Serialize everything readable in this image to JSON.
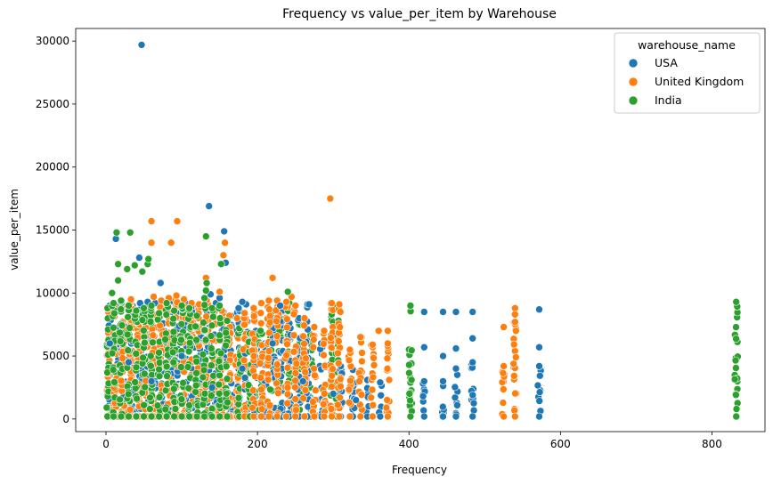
{
  "chart_data": {
    "type": "scatter",
    "title": "Frequency vs value_per_item by Warehouse",
    "xlabel": "Frequency",
    "ylabel": "value_per_item",
    "xlim": [
      -40,
      870
    ],
    "ylim": [
      -1000,
      31000
    ],
    "x_ticks": [
      0,
      200,
      400,
      600,
      800
    ],
    "y_ticks": [
      0,
      5000,
      10000,
      15000,
      20000,
      25000,
      30000
    ],
    "grid": false,
    "legend": {
      "title": "warehouse_name",
      "placement": "top-right",
      "entries": [
        "USA",
        "United Kingdom",
        "India"
      ]
    },
    "series": [
      {
        "name": "USA",
        "color": "#1f77b4",
        "points": [
          [
            47,
            29700
          ],
          [
            136,
            16900
          ],
          [
            156,
            14900
          ],
          [
            158,
            12400
          ],
          [
            13,
            14300
          ],
          [
            44,
            12800
          ],
          [
            72,
            10800
          ],
          [
            138,
            9900
          ],
          [
            150,
            9600
          ],
          [
            180,
            9300
          ],
          [
            230,
            9000
          ],
          [
            268,
            9100
          ],
          [
            420,
            8500
          ],
          [
            445,
            8500
          ],
          [
            462,
            8500
          ],
          [
            484,
            8500
          ],
          [
            572,
            8700
          ],
          [
            420,
            5700
          ],
          [
            462,
            5600
          ],
          [
            484,
            6400
          ],
          [
            572,
            5700
          ],
          [
            445,
            5000
          ],
          [
            5,
            6000
          ],
          [
            30,
            4500
          ],
          [
            60,
            3000
          ],
          [
            100,
            5000
          ],
          [
            140,
            2500
          ],
          [
            180,
            4000
          ],
          [
            220,
            6000
          ],
          [
            260,
            3000
          ],
          [
            300,
            2000
          ],
          [
            330,
            1500
          ]
        ],
        "columns": [
          [
            5,
            9000
          ],
          [
            15,
            9000
          ],
          [
            25,
            8800
          ],
          [
            35,
            9000
          ],
          [
            45,
            9200
          ],
          [
            55,
            9300
          ],
          [
            65,
            9200
          ],
          [
            75,
            9000
          ],
          [
            85,
            9300
          ],
          [
            95,
            9100
          ],
          [
            105,
            9200
          ],
          [
            115,
            9000
          ],
          [
            125,
            8800
          ],
          [
            135,
            9000
          ],
          [
            145,
            9200
          ],
          [
            155,
            8500
          ],
          [
            165,
            8200
          ],
          [
            175,
            8800
          ],
          [
            185,
            9100
          ],
          [
            198,
            7000
          ],
          [
            210,
            6000
          ],
          [
            222,
            8000
          ],
          [
            232,
            9000
          ],
          [
            242,
            7600
          ],
          [
            255,
            8000
          ],
          [
            266,
            9100
          ],
          [
            284,
            6000
          ],
          [
            310,
            4200
          ],
          [
            326,
            3900
          ],
          [
            345,
            3100
          ],
          [
            362,
            2900
          ],
          [
            420,
            3000
          ],
          [
            445,
            3000
          ],
          [
            462,
            4000
          ],
          [
            484,
            4500
          ],
          [
            572,
            4200
          ]
        ]
      },
      {
        "name": "United Kingdom",
        "color": "#ff7f0e",
        "points": [
          [
            296,
            17500
          ],
          [
            60,
            15700
          ],
          [
            94,
            15700
          ],
          [
            60,
            14000
          ],
          [
            86,
            14000
          ],
          [
            157,
            14000
          ],
          [
            155,
            13000
          ],
          [
            132,
            11200
          ],
          [
            220,
            11200
          ],
          [
            150,
            10100
          ],
          [
            245,
            9700
          ],
          [
            525,
            7300
          ],
          [
            540,
            8800
          ],
          [
            540,
            8300
          ],
          [
            360,
            7000
          ],
          [
            372,
            7000
          ],
          [
            372,
            6000
          ]
        ],
        "columns": [
          [
            3,
            8500
          ],
          [
            12,
            8800
          ],
          [
            22,
            9000
          ],
          [
            33,
            9500
          ],
          [
            43,
            8400
          ],
          [
            53,
            8200
          ],
          [
            63,
            9700
          ],
          [
            73,
            9400
          ],
          [
            83,
            9600
          ],
          [
            93,
            9800
          ],
          [
            103,
            9500
          ],
          [
            113,
            9200
          ],
          [
            123,
            9100
          ],
          [
            133,
            9400
          ],
          [
            143,
            8500
          ],
          [
            153,
            8600
          ],
          [
            163,
            8200
          ],
          [
            173,
            8000
          ],
          [
            183,
            8400
          ],
          [
            195,
            8800
          ],
          [
            205,
            9200
          ],
          [
            215,
            9400
          ],
          [
            226,
            9400
          ],
          [
            238,
            9300
          ],
          [
            250,
            9000
          ],
          [
            262,
            8000
          ],
          [
            275,
            7300
          ],
          [
            288,
            7000
          ],
          [
            298,
            9200
          ],
          [
            308,
            9100
          ],
          [
            322,
            5500
          ],
          [
            336,
            6500
          ],
          [
            352,
            5900
          ],
          [
            372,
            5800
          ],
          [
            525,
            4200
          ],
          [
            540,
            7700
          ]
        ]
      },
      {
        "name": "India",
        "color": "#2ca02c",
        "points": [
          [
            14,
            14800
          ],
          [
            32,
            14800
          ],
          [
            16,
            12300
          ],
          [
            28,
            11900
          ],
          [
            38,
            12200
          ],
          [
            48,
            11700
          ],
          [
            55,
            12300
          ],
          [
            56,
            12700
          ],
          [
            152,
            12300
          ],
          [
            132,
            14500
          ],
          [
            133,
            10800
          ],
          [
            240,
            10100
          ],
          [
            16,
            11000
          ],
          [
            8,
            10000
          ],
          [
            132,
            10200
          ]
        ],
        "columns": [
          [
            2,
            8800
          ],
          [
            10,
            9200
          ],
          [
            20,
            9400
          ],
          [
            30,
            9000
          ],
          [
            40,
            8600
          ],
          [
            50,
            8800
          ],
          [
            60,
            9000
          ],
          [
            70,
            8400
          ],
          [
            80,
            9200
          ],
          [
            90,
            8600
          ],
          [
            100,
            9000
          ],
          [
            110,
            8800
          ],
          [
            120,
            8200
          ],
          [
            130,
            9600
          ],
          [
            140,
            8800
          ],
          [
            150,
            9000
          ],
          [
            160,
            7800
          ],
          [
            176,
            7200
          ],
          [
            190,
            6800
          ],
          [
            204,
            7000
          ],
          [
            218,
            8300
          ],
          [
            230,
            8000
          ],
          [
            242,
            9200
          ],
          [
            256,
            7500
          ],
          [
            270,
            6700
          ],
          [
            298,
            8300
          ],
          [
            305,
            9000
          ],
          [
            402,
            9000
          ],
          [
            832,
            9300
          ]
        ]
      }
    ]
  }
}
